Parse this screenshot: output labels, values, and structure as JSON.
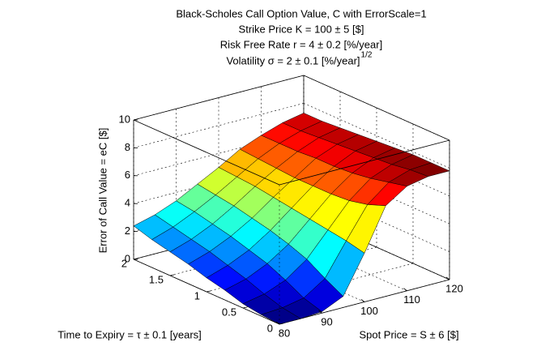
{
  "chart_data": {
    "type": "surface",
    "title": [
      "Black-Scholes Call Option Value, C with ErrorScale=1",
      "Strike Price K = 100 ± 5  [$]",
      "Risk Free Rate r = 4 ± 0.2  [%/year]",
      "Volatility σ = 2 ± 0.1  [%/year]"
    ],
    "title_superscript": "1/2",
    "xlabel": "Spot Price = S ± 6  [$]",
    "ylabel": "Time to Expiry = τ ± 0.1  [years]",
    "zlabel": "Error of Call Value = eC  [$]",
    "x": [
      80,
      85,
      90,
      95,
      100,
      105,
      110,
      115,
      120
    ],
    "y": [
      0,
      0.25,
      0.5,
      0.75,
      1,
      1.25,
      1.5,
      1.75,
      2
    ],
    "z": [
      [
        0,
        0,
        0.1,
        0.8,
        3.5,
        6.5,
        7.5,
        7.8,
        7.8
      ],
      [
        0.1,
        0.2,
        0.5,
        1.5,
        3.8,
        6.0,
        7.2,
        7.7,
        7.8
      ],
      [
        0.3,
        0.6,
        1.2,
        2.3,
        4.0,
        5.7,
        6.9,
        7.5,
        7.8
      ],
      [
        0.7,
        1.1,
        1.8,
        2.8,
        4.2,
        5.6,
        6.7,
        7.4,
        7.7
      ],
      [
        1.0,
        1.5,
        2.2,
        3.2,
        4.4,
        5.6,
        6.6,
        7.3,
        7.6
      ],
      [
        1.4,
        1.9,
        2.6,
        3.5,
        4.6,
        5.6,
        6.6,
        7.2,
        7.5
      ],
      [
        1.7,
        2.2,
        2.9,
        3.8,
        4.8,
        5.7,
        6.5,
        7.1,
        7.4
      ],
      [
        2.0,
        2.5,
        3.2,
        4.0,
        4.9,
        5.8,
        6.5,
        7.0,
        7.3
      ],
      [
        2.4,
        2.8,
        3.4,
        4.2,
        5.0,
        5.9,
        6.5,
        7.0,
        7.3
      ]
    ],
    "colormap": "jet",
    "xlim": [
      80,
      120
    ],
    "xticks": [
      80,
      90,
      100,
      110,
      120
    ],
    "ylim": [
      0,
      2
    ],
    "yticks": [
      0,
      0.5,
      1,
      1.5,
      2
    ],
    "zlim": [
      0,
      10
    ],
    "zticks": [
      0,
      2,
      4,
      6,
      8,
      10
    ],
    "grid": true
  }
}
